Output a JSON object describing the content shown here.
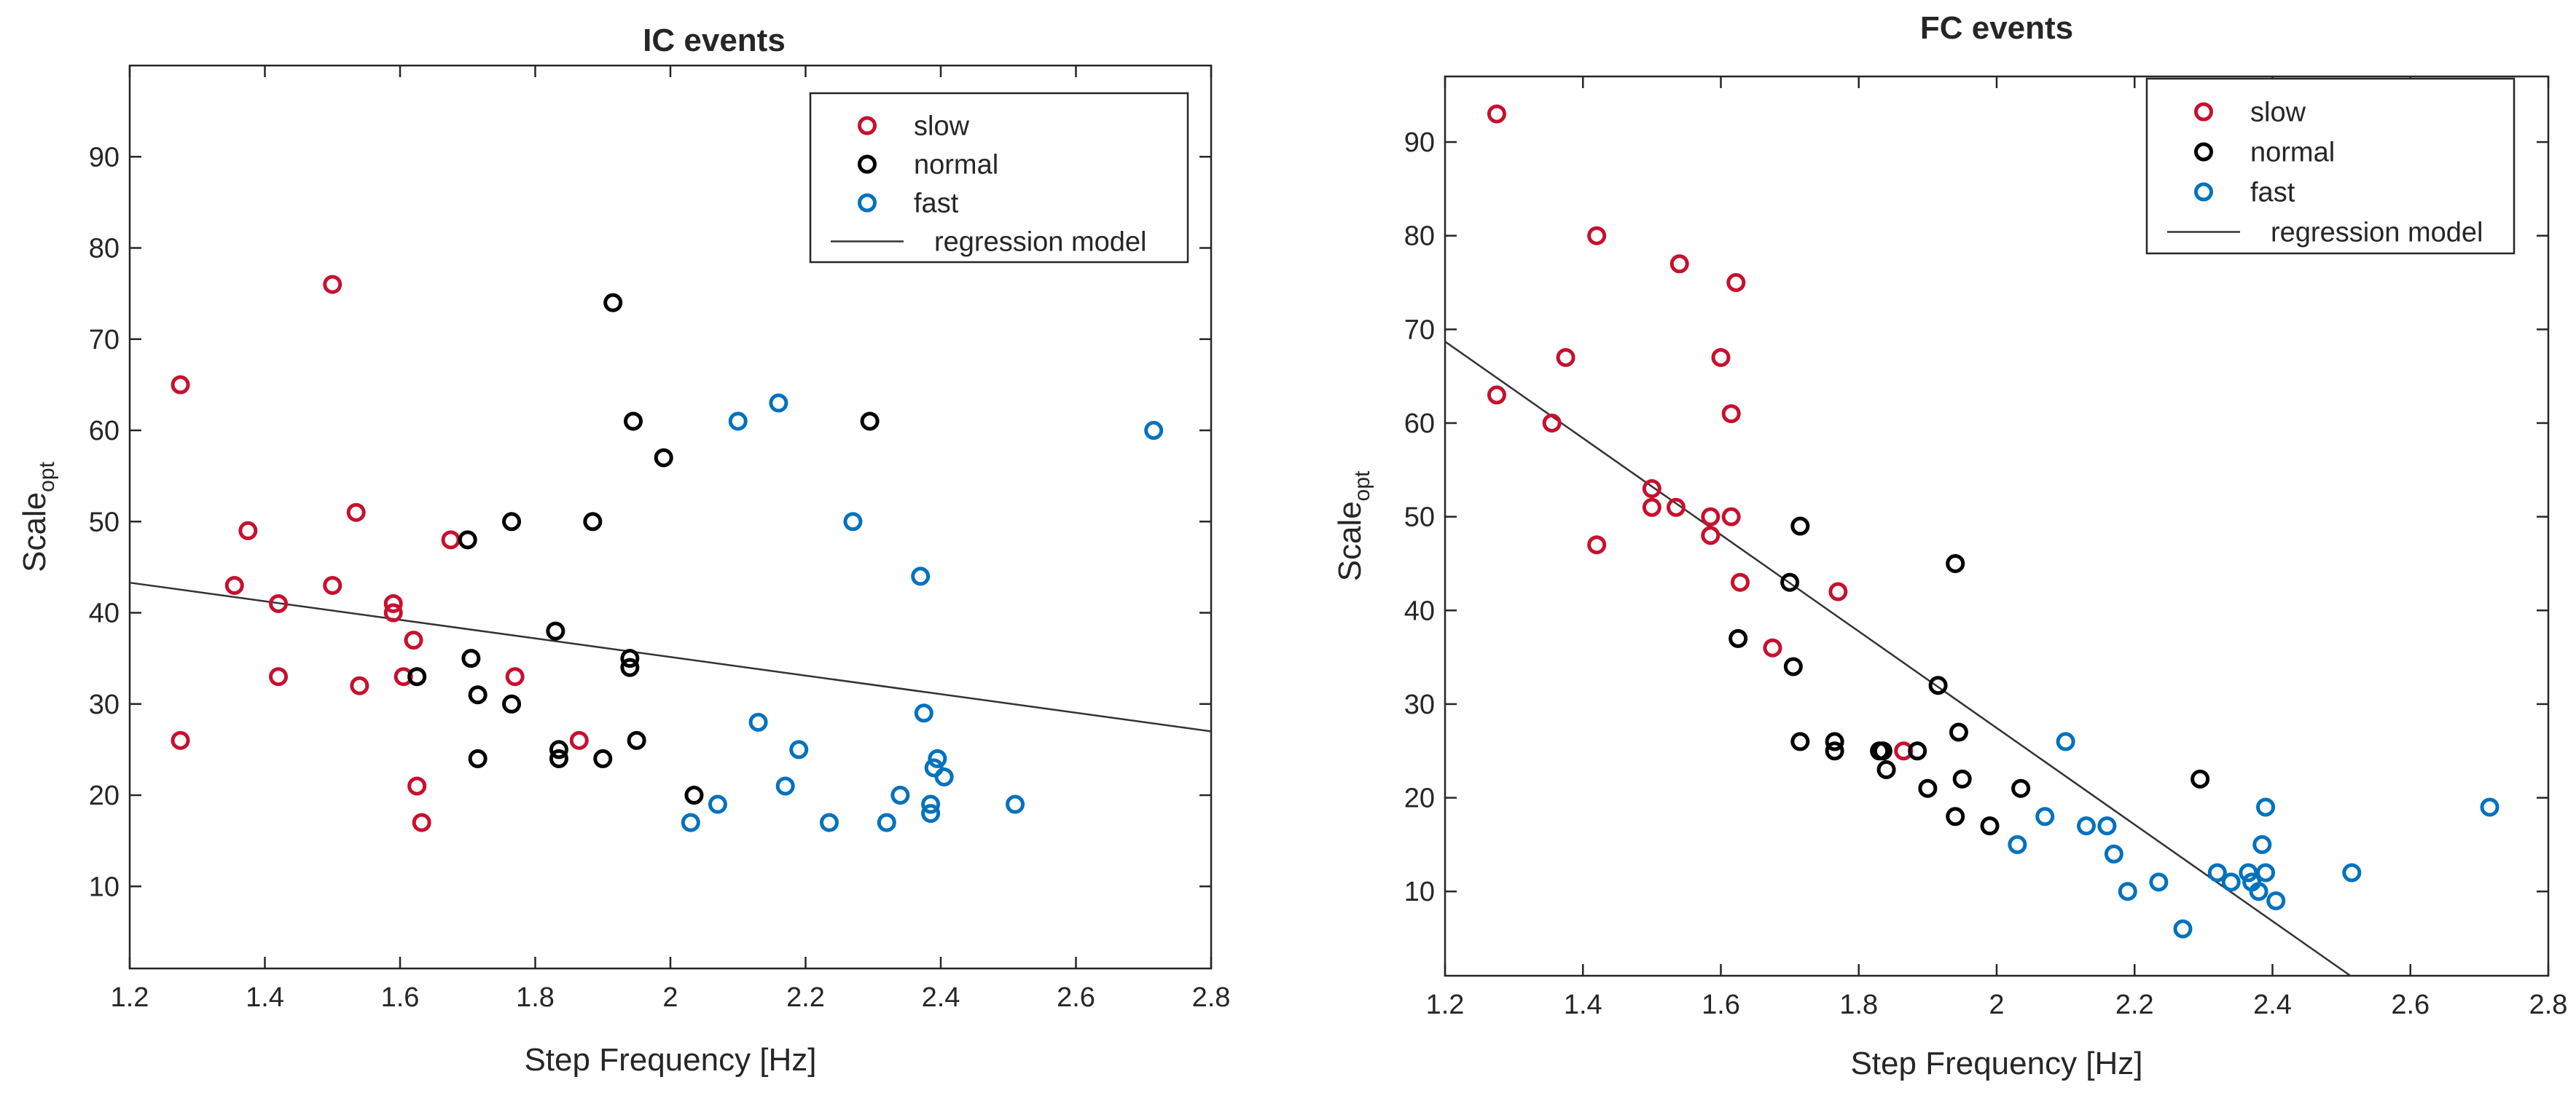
{
  "chart_data": [
    {
      "type": "scatter",
      "title": "IC events",
      "xlabel": "Step Frequency [Hz]",
      "ylabel_base": "Scale",
      "ylabel_sub": "opt",
      "xlim": [
        1.2,
        2.8
      ],
      "ylim": [
        1,
        100
      ],
      "xticks": [
        1.2,
        1.4,
        1.6,
        1.8,
        2.0,
        2.2,
        2.4,
        2.6,
        2.8
      ],
      "xtick_labels": [
        "1.2",
        "1.4",
        "1.6",
        "1.8",
        "2",
        "2.2",
        "2.4",
        "2.6",
        "2.8"
      ],
      "yticks": [
        10,
        20,
        30,
        40,
        50,
        60,
        70,
        80,
        90
      ],
      "ytick_labels": [
        "10",
        "20",
        "30",
        "40",
        "50",
        "60",
        "70",
        "80",
        "90"
      ],
      "legend_position": "top-right",
      "series": [
        {
          "name": "slow",
          "color": "#c8102e",
          "points": [
            [
              1.275,
              65
            ],
            [
              1.275,
              26
            ],
            [
              1.355,
              43
            ],
            [
              1.375,
              49
            ],
            [
              1.42,
              41
            ],
            [
              1.42,
              33
            ],
            [
              1.5,
              76
            ],
            [
              1.5,
              43
            ],
            [
              1.535,
              51
            ],
            [
              1.54,
              32
            ],
            [
              1.59,
              41
            ],
            [
              1.59,
              40
            ],
            [
              1.605,
              33
            ],
            [
              1.62,
              37
            ],
            [
              1.625,
              33
            ],
            [
              1.625,
              21
            ],
            [
              1.632,
              17
            ],
            [
              1.675,
              48
            ],
            [
              1.77,
              33
            ],
            [
              1.865,
              26
            ]
          ]
        },
        {
          "name": "normal",
          "color": "#000000",
          "points": [
            [
              1.625,
              33
            ],
            [
              1.7,
              48
            ],
            [
              1.705,
              35
            ],
            [
              1.715,
              31
            ],
            [
              1.715,
              24
            ],
            [
              1.765,
              50
            ],
            [
              1.765,
              30
            ],
            [
              1.83,
              38
            ],
            [
              1.835,
              25
            ],
            [
              1.835,
              24
            ],
            [
              1.885,
              50
            ],
            [
              1.9,
              24
            ],
            [
              1.915,
              74
            ],
            [
              1.94,
              35
            ],
            [
              1.94,
              34
            ],
            [
              1.945,
              61
            ],
            [
              1.95,
              26
            ],
            [
              1.99,
              57
            ],
            [
              2.035,
              20
            ],
            [
              2.295,
              61
            ]
          ]
        },
        {
          "name": "fast",
          "color": "#0072bd",
          "points": [
            [
              2.03,
              17
            ],
            [
              2.07,
              19
            ],
            [
              2.1,
              61
            ],
            [
              2.13,
              28
            ],
            [
              2.16,
              63
            ],
            [
              2.17,
              21
            ],
            [
              2.19,
              25
            ],
            [
              2.235,
              17
            ],
            [
              2.27,
              50
            ],
            [
              2.32,
              17
            ],
            [
              2.34,
              20
            ],
            [
              2.37,
              44
            ],
            [
              2.375,
              29
            ],
            [
              2.385,
              18
            ],
            [
              2.385,
              19
            ],
            [
              2.39,
              23
            ],
            [
              2.395,
              24
            ],
            [
              2.405,
              22
            ],
            [
              2.51,
              19
            ],
            [
              2.715,
              60
            ]
          ]
        }
      ],
      "regression_label": "regression model",
      "regression_line": {
        "x": [
          1.2,
          2.8
        ],
        "y": [
          43.3,
          27.0
        ]
      }
    },
    {
      "type": "scatter",
      "title": "FC events",
      "xlabel": "Step Frequency [Hz]",
      "ylabel_base": "Scale",
      "ylabel_sub": "opt",
      "xlim": [
        1.2,
        2.8
      ],
      "ylim": [
        1,
        97
      ],
      "xticks": [
        1.2,
        1.4,
        1.6,
        1.8,
        2.0,
        2.2,
        2.4,
        2.6,
        2.8
      ],
      "xtick_labels": [
        "1.2",
        "1.4",
        "1.6",
        "1.8",
        "2",
        "2.2",
        "2.4",
        "2.6",
        "2.8"
      ],
      "yticks": [
        10,
        20,
        30,
        40,
        50,
        60,
        70,
        80,
        90
      ],
      "ytick_labels": [
        "10",
        "20",
        "30",
        "40",
        "50",
        "60",
        "70",
        "80",
        "90"
      ],
      "legend_position": "top-right",
      "series": [
        {
          "name": "slow",
          "color": "#c8102e",
          "points": [
            [
              1.275,
              93
            ],
            [
              1.275,
              63
            ],
            [
              1.355,
              60
            ],
            [
              1.375,
              67
            ],
            [
              1.42,
              80
            ],
            [
              1.42,
              47
            ],
            [
              1.5,
              53
            ],
            [
              1.5,
              51
            ],
            [
              1.535,
              51
            ],
            [
              1.54,
              77
            ],
            [
              1.585,
              50
            ],
            [
              1.585,
              48
            ],
            [
              1.6,
              67
            ],
            [
              1.615,
              61
            ],
            [
              1.615,
              50
            ],
            [
              1.622,
              75
            ],
            [
              1.628,
              43
            ],
            [
              1.675,
              36
            ],
            [
              1.77,
              42
            ],
            [
              1.865,
              25
            ]
          ]
        },
        {
          "name": "normal",
          "color": "#000000",
          "points": [
            [
              1.625,
              37
            ],
            [
              1.7,
              43
            ],
            [
              1.705,
              34
            ],
            [
              1.715,
              49
            ],
            [
              1.715,
              26
            ],
            [
              1.765,
              26
            ],
            [
              1.765,
              25
            ],
            [
              1.83,
              25
            ],
            [
              1.835,
              25
            ],
            [
              1.84,
              23
            ],
            [
              1.885,
              25
            ],
            [
              1.9,
              21
            ],
            [
              1.915,
              32
            ],
            [
              1.94,
              45
            ],
            [
              1.94,
              18
            ],
            [
              1.945,
              27
            ],
            [
              1.95,
              22
            ],
            [
              1.99,
              17
            ],
            [
              2.035,
              21
            ],
            [
              2.295,
              22
            ]
          ]
        },
        {
          "name": "fast",
          "color": "#0072bd",
          "points": [
            [
              2.03,
              15
            ],
            [
              2.07,
              18
            ],
            [
              2.1,
              26
            ],
            [
              2.13,
              17
            ],
            [
              2.16,
              17
            ],
            [
              2.17,
              14
            ],
            [
              2.19,
              10
            ],
            [
              2.235,
              11
            ],
            [
              2.27,
              6
            ],
            [
              2.32,
              12
            ],
            [
              2.34,
              11
            ],
            [
              2.365,
              12
            ],
            [
              2.37,
              11
            ],
            [
              2.38,
              10
            ],
            [
              2.385,
              15
            ],
            [
              2.39,
              19
            ],
            [
              2.39,
              12
            ],
            [
              2.405,
              9
            ],
            [
              2.515,
              12
            ],
            [
              2.715,
              19
            ]
          ]
        }
      ],
      "regression_label": "regression model",
      "regression_line": {
        "x": [
          1.2,
          2.513
        ],
        "y": [
          68.7,
          1.0
        ]
      }
    }
  ]
}
